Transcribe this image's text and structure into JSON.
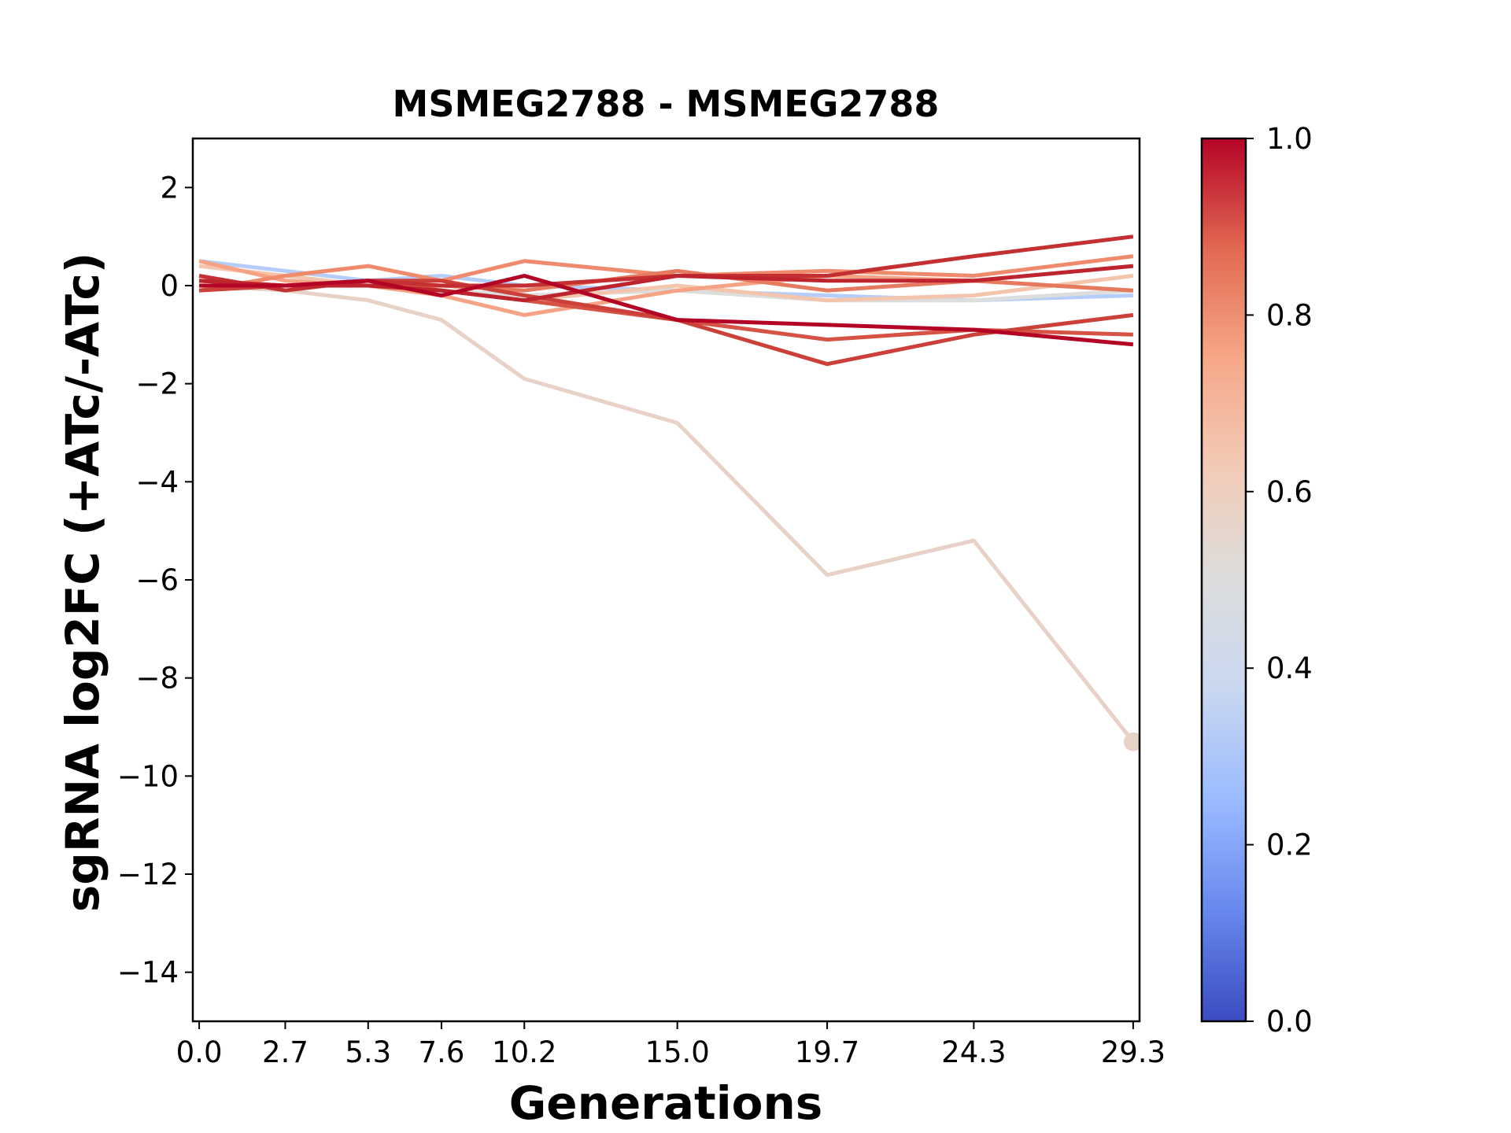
{
  "chart_data": {
    "type": "line",
    "title": "MSMEG2788 - MSMEG2788",
    "xlabel": "Generations",
    "ylabel": "sgRNA log2FC (+ATc/-ATc)",
    "x": [
      0.0,
      2.7,
      5.3,
      7.6,
      10.2,
      15.0,
      19.7,
      24.3,
      29.3
    ],
    "x_tick_labels": [
      "0.0",
      "2.7",
      "5.3",
      "7.6",
      "10.2",
      "15.0",
      "19.7",
      "24.3",
      "29.3"
    ],
    "xlim": [
      -0.2,
      29.5
    ],
    "ylim": [
      -15,
      3
    ],
    "y_ticks": [
      2,
      0,
      -2,
      -4,
      -6,
      -8,
      -10,
      -12,
      -14
    ],
    "y_tick_labels": [
      "2",
      "0",
      "−2",
      "−4",
      "−6",
      "−8",
      "−10",
      "−12",
      "−14"
    ],
    "grid": false,
    "colorbar": {
      "colormap": "coolwarm",
      "range": [
        0.0,
        1.0
      ],
      "tick_labels": [
        "0.0",
        "0.2",
        "0.4",
        "0.6",
        "0.8",
        "1.0"
      ],
      "stops": [
        "#3b4cc0",
        "#6788ee",
        "#9abbff",
        "#c9d7f0",
        "#dcdddd",
        "#f2cbb7",
        "#f7a889",
        "#e26952",
        "#b40426"
      ]
    },
    "series": [
      {
        "color": "#b5cdfa",
        "values": [
          0.5,
          0.3,
          0.1,
          0.2,
          0.0,
          -0.1,
          -0.2,
          -0.3,
          -0.2
        ]
      },
      {
        "color": "#dcdddd",
        "values": [
          0.1,
          0.0,
          0.0,
          -0.1,
          -0.2,
          -0.1,
          -0.3,
          -0.3,
          -0.1
        ]
      },
      {
        "color": "#e8d2c7",
        "values": [
          0.0,
          -0.1,
          -0.3,
          -0.7,
          -1.9,
          -2.8,
          -5.9,
          -5.2,
          -9.3
        ],
        "end_marker": true
      },
      {
        "color": "#f4c5ad",
        "values": [
          0.4,
          0.2,
          0.0,
          -0.1,
          -0.3,
          0.0,
          -0.3,
          -0.2,
          0.2
        ]
      },
      {
        "color": "#f6a385",
        "values": [
          0.5,
          0.1,
          0.0,
          -0.2,
          -0.6,
          -0.1,
          0.2,
          0.1,
          -0.1
        ]
      },
      {
        "color": "#f08a6c",
        "values": [
          -0.1,
          0.2,
          0.4,
          0.1,
          0.5,
          0.2,
          0.3,
          0.2,
          0.6
        ]
      },
      {
        "color": "#e67a5f",
        "values": [
          0.0,
          0.0,
          0.0,
          0.0,
          -0.1,
          0.3,
          -0.1,
          0.1,
          -0.1
        ]
      },
      {
        "color": "#d65244",
        "values": [
          0.1,
          0.0,
          0.1,
          -0.1,
          -0.3,
          -0.7,
          -1.1,
          -0.9,
          -1.0
        ]
      },
      {
        "color": "#cc403a",
        "values": [
          -0.1,
          0.0,
          0.1,
          0.1,
          -0.2,
          -0.7,
          -1.6,
          -1.0,
          -0.6
        ]
      },
      {
        "color": "#c43032",
        "values": [
          0.2,
          -0.1,
          0.1,
          0.0,
          0.0,
          0.2,
          0.2,
          0.6,
          1.0
        ]
      },
      {
        "color": "#be242e",
        "values": [
          0.1,
          0.0,
          0.0,
          -0.1,
          -0.3,
          0.2,
          0.1,
          0.1,
          0.4
        ]
      },
      {
        "color": "#b40426",
        "values": [
          0.0,
          0.0,
          0.1,
          -0.2,
          0.2,
          -0.7,
          -0.8,
          -0.9,
          -1.2
        ]
      }
    ]
  }
}
